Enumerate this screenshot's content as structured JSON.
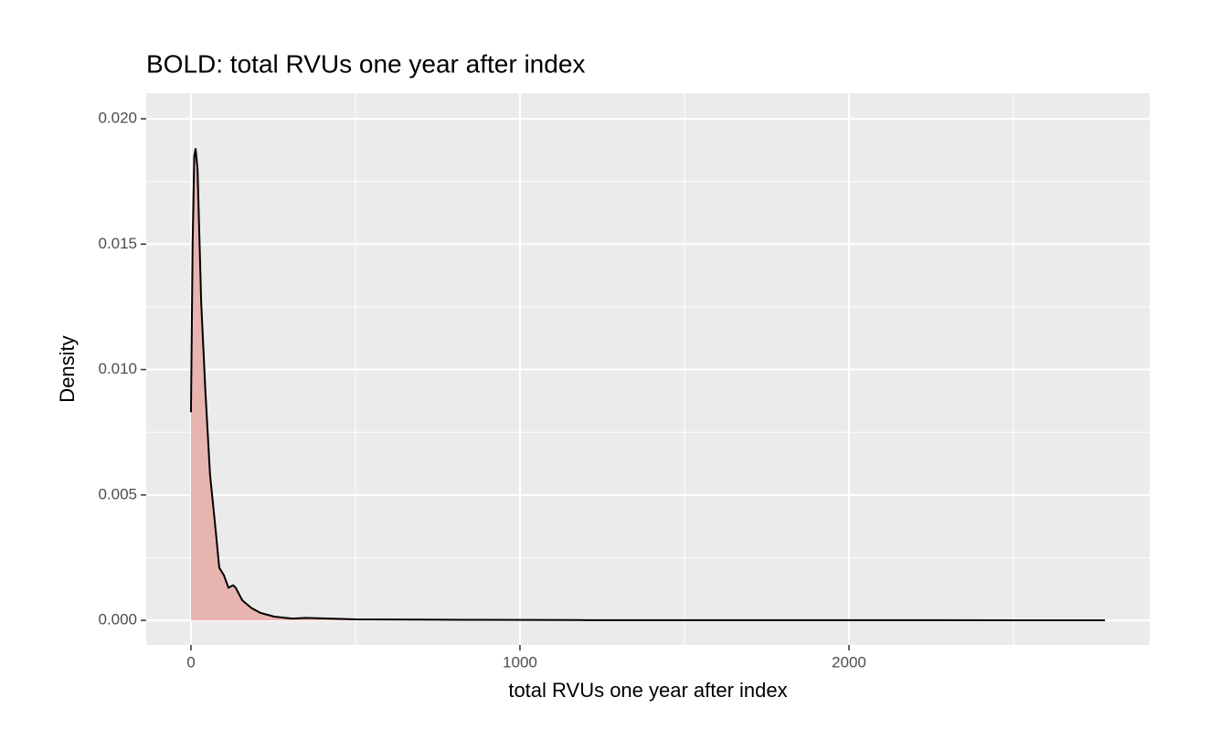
{
  "chart_data": {
    "type": "density",
    "title": "BOLD: total RVUs one year after index",
    "xlabel": "total RVUs one year after index",
    "ylabel": "Density",
    "x": [
      0,
      5,
      10,
      14,
      20,
      31,
      44,
      58,
      72,
      86,
      100,
      114,
      128,
      136,
      156,
      183,
      211,
      253,
      308,
      350,
      420,
      500,
      700,
      900,
      1200,
      1500,
      2000,
      2500,
      2778
    ],
    "y": [
      0.0083,
      0.015,
      0.0185,
      0.0188,
      0.018,
      0.0127,
      0.0091,
      0.0058,
      0.004,
      0.0021,
      0.0018,
      0.0013,
      0.0014,
      0.0013,
      0.0008,
      0.0005,
      0.0003,
      0.00015,
      7e-05,
      0.0001,
      7e-05,
      4e-05,
      3e-05,
      2e-05,
      1e-05,
      1e-05,
      1e-05,
      5e-06,
      5e-06
    ],
    "color": "#000000",
    "fill": "#e8b4b0",
    "xlim": [
      -136,
      2914
    ],
    "ylim": [
      -0.00098,
      0.02102
    ],
    "xticks": [
      0,
      1000,
      2000
    ],
    "yticks": [
      {
        "value": 0,
        "label": "0.000"
      },
      {
        "value": 0.005,
        "label": "0.005"
      },
      {
        "value": 0.01,
        "label": "0.010"
      },
      {
        "value": 0.015,
        "label": "0.015"
      },
      {
        "value": 0.02,
        "label": "0.020"
      }
    ],
    "x_minor_grid": [
      500,
      1500,
      2500
    ],
    "y_minor_grid": [
      0.0025,
      0.0075,
      0.0125,
      0.0175
    ],
    "grid": true
  }
}
